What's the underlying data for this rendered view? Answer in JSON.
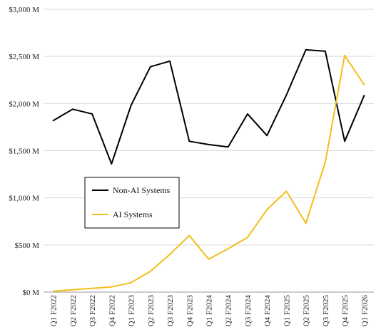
{
  "chart_data": {
    "type": "line",
    "categories": [
      "Q1 F2022",
      "Q2 F2022",
      "Q3 F2022",
      "Q4 F2022",
      "Q1 F2023",
      "Q2 F2023",
      "Q3 F2023",
      "Q4 F2023",
      "Q1 F2024",
      "Q2 F2024",
      "Q3 F2024",
      "Q4 F2024",
      "Q1 F2025",
      "Q2 F2025",
      "Q3 F2025",
      "Q4 F2025",
      "Q1 F2026"
    ],
    "series": [
      {
        "name": "Non-AI Systems",
        "color": "#000000",
        "values": [
          1820,
          1940,
          1890,
          1360,
          1980,
          2390,
          2450,
          1600,
          1565,
          1540,
          1890,
          1660,
          2090,
          2570,
          2555,
          1600,
          2085
        ]
      },
      {
        "name": "AI Systems",
        "color": "#F2BE1A",
        "values": [
          10,
          25,
          40,
          55,
          100,
          220,
          400,
          600,
          350,
          460,
          580,
          875,
          1070,
          730,
          1380,
          2510,
          2200
        ]
      }
    ],
    "ylim": [
      0,
      3000
    ],
    "yticks": [
      0,
      500,
      1000,
      1500,
      2000,
      2500,
      3000
    ],
    "ytick_labels": [
      "$0 M",
      "$500 M",
      "$1,000 M",
      "$1,500 M",
      "$2,000 M",
      "$2,500 M",
      "$3,000 M"
    ],
    "grid": "horizontal",
    "legend_position": "center-left"
  }
}
